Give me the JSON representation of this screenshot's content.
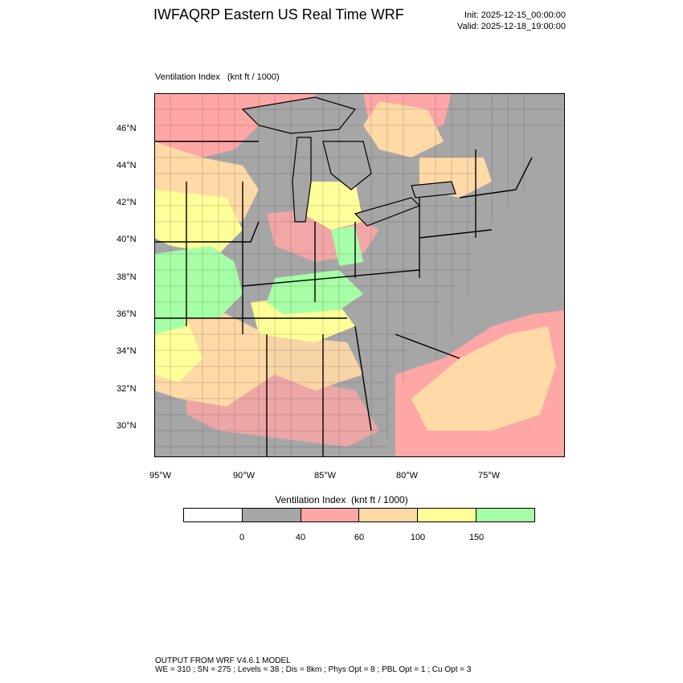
{
  "header": {
    "title": "IWFAQRP Eastern US Real Time WRF",
    "init": "Init: 2025-12-15_00:00:00",
    "valid": "Valid: 2025-12-18_19:00:00"
  },
  "panel": {
    "label": "Ventilation Index   (knt ft / 1000)"
  },
  "map": {
    "lat_labels": [
      "46°N",
      "44°N",
      "42°N",
      "40°N",
      "38°N",
      "36°N",
      "34°N",
      "32°N",
      "30°N"
    ],
    "lon_labels": [
      "95°W",
      "90°W",
      "85°W",
      "80°W",
      "75°W"
    ],
    "colors": {
      "ocean": "#a6a6a6",
      "land_low": "#a6a6a6",
      "pink": "#ffa6a6",
      "orange": "#ffd9a6",
      "yellow": "#ffff99",
      "green": "#a6ffa6",
      "lake": "#a6a6a6",
      "border": "#000000"
    }
  },
  "legend": {
    "title": "Ventilation Index  (knt ft / 1000)",
    "colors": [
      "#ffffff",
      "#a6a6a6",
      "#ffa6a6",
      "#ffd9a6",
      "#ffff99",
      "#a6ffa6"
    ],
    "labels": [
      "0",
      "40",
      "60",
      "100",
      "150"
    ]
  },
  "footer": {
    "line1": "OUTPUT FROM WRF V4.6.1 MODEL",
    "line2": "WE = 310 ; SN = 275 ; Levels = 38 ; Dis = 8km ; Phys Opt = 8 ; PBL Opt = 1 ; Cu Opt = 3"
  }
}
